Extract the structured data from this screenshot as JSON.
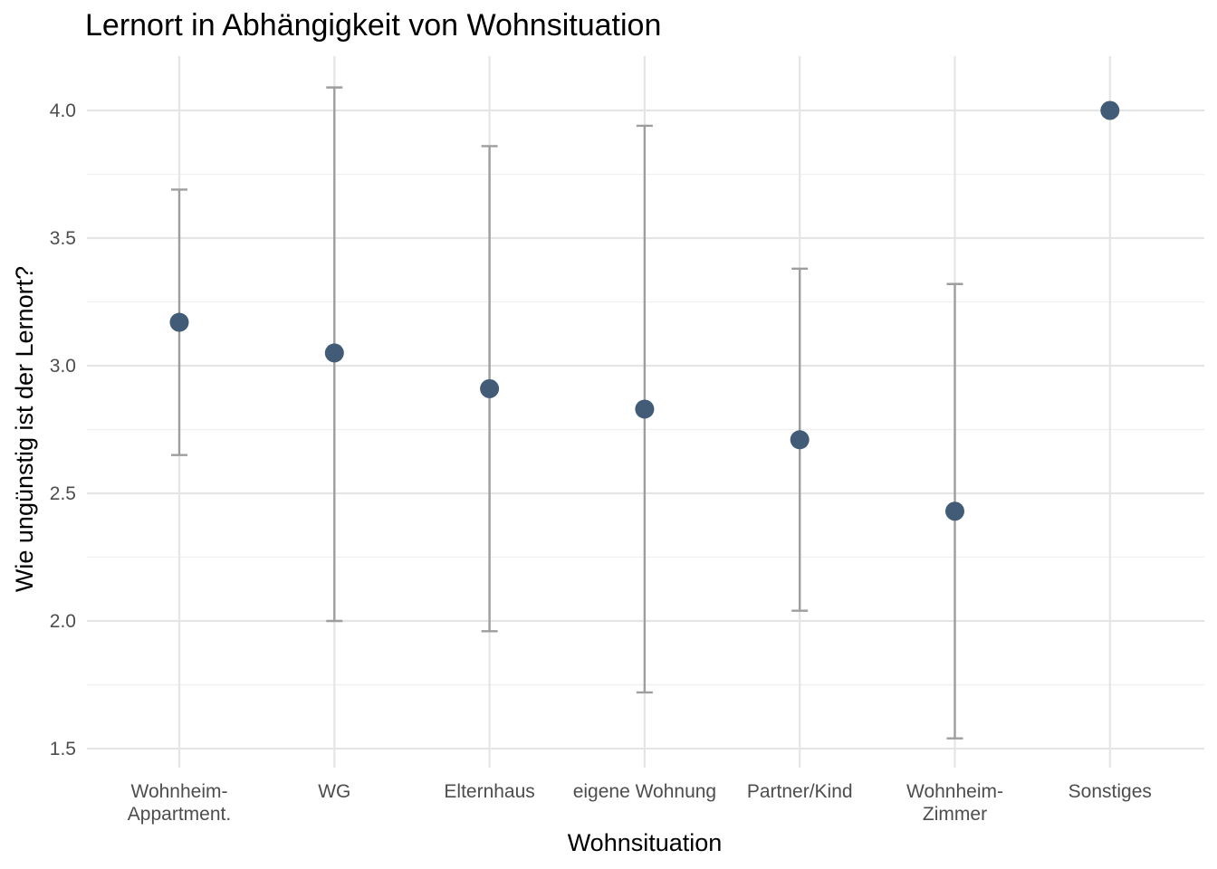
{
  "chart_data": {
    "type": "scatter",
    "title": "Lernort in Abhängigkeit von Wohnsituation",
    "xlabel": "Wohnsituation",
    "ylabel": "Wie ungünstig ist der Lernort?",
    "ylim": [
      1.42,
      4.22
    ],
    "yticks": [
      "1.5",
      "2.0",
      "2.5",
      "3.0",
      "3.5",
      "4.0"
    ],
    "grid": true,
    "categories": [
      [
        "Wohnheim-",
        "Appartment."
      ],
      [
        "WG"
      ],
      [
        "Elternhaus"
      ],
      [
        "eigene Wohnung"
      ],
      [
        "Partner/Kind"
      ],
      [
        "Wohnheim-",
        "Zimmer"
      ],
      [
        "Sonstiges"
      ]
    ],
    "series": [
      {
        "values": [
          3.17,
          3.05,
          2.91,
          2.83,
          2.71,
          2.43,
          4.0
        ],
        "error_lower": [
          2.65,
          2.0,
          1.96,
          1.72,
          2.04,
          1.54,
          null
        ],
        "error_upper": [
          3.69,
          4.09,
          3.86,
          3.94,
          3.38,
          3.32,
          null
        ]
      }
    ],
    "colors": {
      "point": "#425c78",
      "errorbar": "#9e9e9e",
      "grid": "#e5e5e5"
    }
  }
}
